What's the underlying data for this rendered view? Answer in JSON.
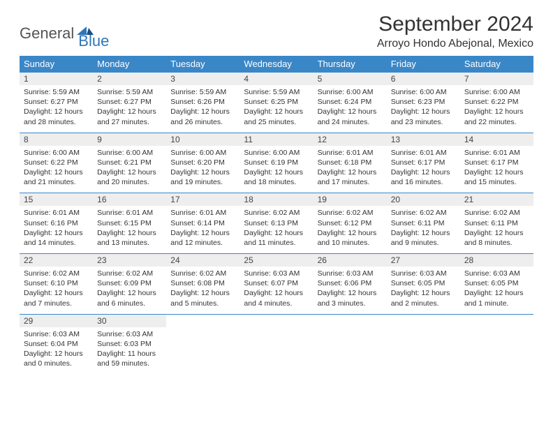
{
  "brand": {
    "word1": "General",
    "word2": "Blue"
  },
  "title": "September 2024",
  "location": "Arroyo Hondo Abejonal, Mexico",
  "colors": {
    "header_bg": "#3a87c8",
    "header_text": "#ffffff",
    "daynum_bg": "#eeeeee",
    "row_border": "#3a87c8",
    "body_text": "#333333",
    "brand_accent": "#2f76b9"
  },
  "day_headers": [
    "Sunday",
    "Monday",
    "Tuesday",
    "Wednesday",
    "Thursday",
    "Friday",
    "Saturday"
  ],
  "weeks": [
    [
      {
        "num": "1",
        "sunrise": "Sunrise: 5:59 AM",
        "sunset": "Sunset: 6:27 PM",
        "day1": "Daylight: 12 hours",
        "day2": "and 28 minutes."
      },
      {
        "num": "2",
        "sunrise": "Sunrise: 5:59 AM",
        "sunset": "Sunset: 6:27 PM",
        "day1": "Daylight: 12 hours",
        "day2": "and 27 minutes."
      },
      {
        "num": "3",
        "sunrise": "Sunrise: 5:59 AM",
        "sunset": "Sunset: 6:26 PM",
        "day1": "Daylight: 12 hours",
        "day2": "and 26 minutes."
      },
      {
        "num": "4",
        "sunrise": "Sunrise: 5:59 AM",
        "sunset": "Sunset: 6:25 PM",
        "day1": "Daylight: 12 hours",
        "day2": "and 25 minutes."
      },
      {
        "num": "5",
        "sunrise": "Sunrise: 6:00 AM",
        "sunset": "Sunset: 6:24 PM",
        "day1": "Daylight: 12 hours",
        "day2": "and 24 minutes."
      },
      {
        "num": "6",
        "sunrise": "Sunrise: 6:00 AM",
        "sunset": "Sunset: 6:23 PM",
        "day1": "Daylight: 12 hours",
        "day2": "and 23 minutes."
      },
      {
        "num": "7",
        "sunrise": "Sunrise: 6:00 AM",
        "sunset": "Sunset: 6:22 PM",
        "day1": "Daylight: 12 hours",
        "day2": "and 22 minutes."
      }
    ],
    [
      {
        "num": "8",
        "sunrise": "Sunrise: 6:00 AM",
        "sunset": "Sunset: 6:22 PM",
        "day1": "Daylight: 12 hours",
        "day2": "and 21 minutes."
      },
      {
        "num": "9",
        "sunrise": "Sunrise: 6:00 AM",
        "sunset": "Sunset: 6:21 PM",
        "day1": "Daylight: 12 hours",
        "day2": "and 20 minutes."
      },
      {
        "num": "10",
        "sunrise": "Sunrise: 6:00 AM",
        "sunset": "Sunset: 6:20 PM",
        "day1": "Daylight: 12 hours",
        "day2": "and 19 minutes."
      },
      {
        "num": "11",
        "sunrise": "Sunrise: 6:00 AM",
        "sunset": "Sunset: 6:19 PM",
        "day1": "Daylight: 12 hours",
        "day2": "and 18 minutes."
      },
      {
        "num": "12",
        "sunrise": "Sunrise: 6:01 AM",
        "sunset": "Sunset: 6:18 PM",
        "day1": "Daylight: 12 hours",
        "day2": "and 17 minutes."
      },
      {
        "num": "13",
        "sunrise": "Sunrise: 6:01 AM",
        "sunset": "Sunset: 6:17 PM",
        "day1": "Daylight: 12 hours",
        "day2": "and 16 minutes."
      },
      {
        "num": "14",
        "sunrise": "Sunrise: 6:01 AM",
        "sunset": "Sunset: 6:17 PM",
        "day1": "Daylight: 12 hours",
        "day2": "and 15 minutes."
      }
    ],
    [
      {
        "num": "15",
        "sunrise": "Sunrise: 6:01 AM",
        "sunset": "Sunset: 6:16 PM",
        "day1": "Daylight: 12 hours",
        "day2": "and 14 minutes."
      },
      {
        "num": "16",
        "sunrise": "Sunrise: 6:01 AM",
        "sunset": "Sunset: 6:15 PM",
        "day1": "Daylight: 12 hours",
        "day2": "and 13 minutes."
      },
      {
        "num": "17",
        "sunrise": "Sunrise: 6:01 AM",
        "sunset": "Sunset: 6:14 PM",
        "day1": "Daylight: 12 hours",
        "day2": "and 12 minutes."
      },
      {
        "num": "18",
        "sunrise": "Sunrise: 6:02 AM",
        "sunset": "Sunset: 6:13 PM",
        "day1": "Daylight: 12 hours",
        "day2": "and 11 minutes."
      },
      {
        "num": "19",
        "sunrise": "Sunrise: 6:02 AM",
        "sunset": "Sunset: 6:12 PM",
        "day1": "Daylight: 12 hours",
        "day2": "and 10 minutes."
      },
      {
        "num": "20",
        "sunrise": "Sunrise: 6:02 AM",
        "sunset": "Sunset: 6:11 PM",
        "day1": "Daylight: 12 hours",
        "day2": "and 9 minutes."
      },
      {
        "num": "21",
        "sunrise": "Sunrise: 6:02 AM",
        "sunset": "Sunset: 6:11 PM",
        "day1": "Daylight: 12 hours",
        "day2": "and 8 minutes."
      }
    ],
    [
      {
        "num": "22",
        "sunrise": "Sunrise: 6:02 AM",
        "sunset": "Sunset: 6:10 PM",
        "day1": "Daylight: 12 hours",
        "day2": "and 7 minutes."
      },
      {
        "num": "23",
        "sunrise": "Sunrise: 6:02 AM",
        "sunset": "Sunset: 6:09 PM",
        "day1": "Daylight: 12 hours",
        "day2": "and 6 minutes."
      },
      {
        "num": "24",
        "sunrise": "Sunrise: 6:02 AM",
        "sunset": "Sunset: 6:08 PM",
        "day1": "Daylight: 12 hours",
        "day2": "and 5 minutes."
      },
      {
        "num": "25",
        "sunrise": "Sunrise: 6:03 AM",
        "sunset": "Sunset: 6:07 PM",
        "day1": "Daylight: 12 hours",
        "day2": "and 4 minutes."
      },
      {
        "num": "26",
        "sunrise": "Sunrise: 6:03 AM",
        "sunset": "Sunset: 6:06 PM",
        "day1": "Daylight: 12 hours",
        "day2": "and 3 minutes."
      },
      {
        "num": "27",
        "sunrise": "Sunrise: 6:03 AM",
        "sunset": "Sunset: 6:05 PM",
        "day1": "Daylight: 12 hours",
        "day2": "and 2 minutes."
      },
      {
        "num": "28",
        "sunrise": "Sunrise: 6:03 AM",
        "sunset": "Sunset: 6:05 PM",
        "day1": "Daylight: 12 hours",
        "day2": "and 1 minute."
      }
    ],
    [
      {
        "num": "29",
        "sunrise": "Sunrise: 6:03 AM",
        "sunset": "Sunset: 6:04 PM",
        "day1": "Daylight: 12 hours",
        "day2": "and 0 minutes."
      },
      {
        "num": "30",
        "sunrise": "Sunrise: 6:03 AM",
        "sunset": "Sunset: 6:03 PM",
        "day1": "Daylight: 11 hours",
        "day2": "and 59 minutes."
      },
      null,
      null,
      null,
      null,
      null
    ]
  ]
}
